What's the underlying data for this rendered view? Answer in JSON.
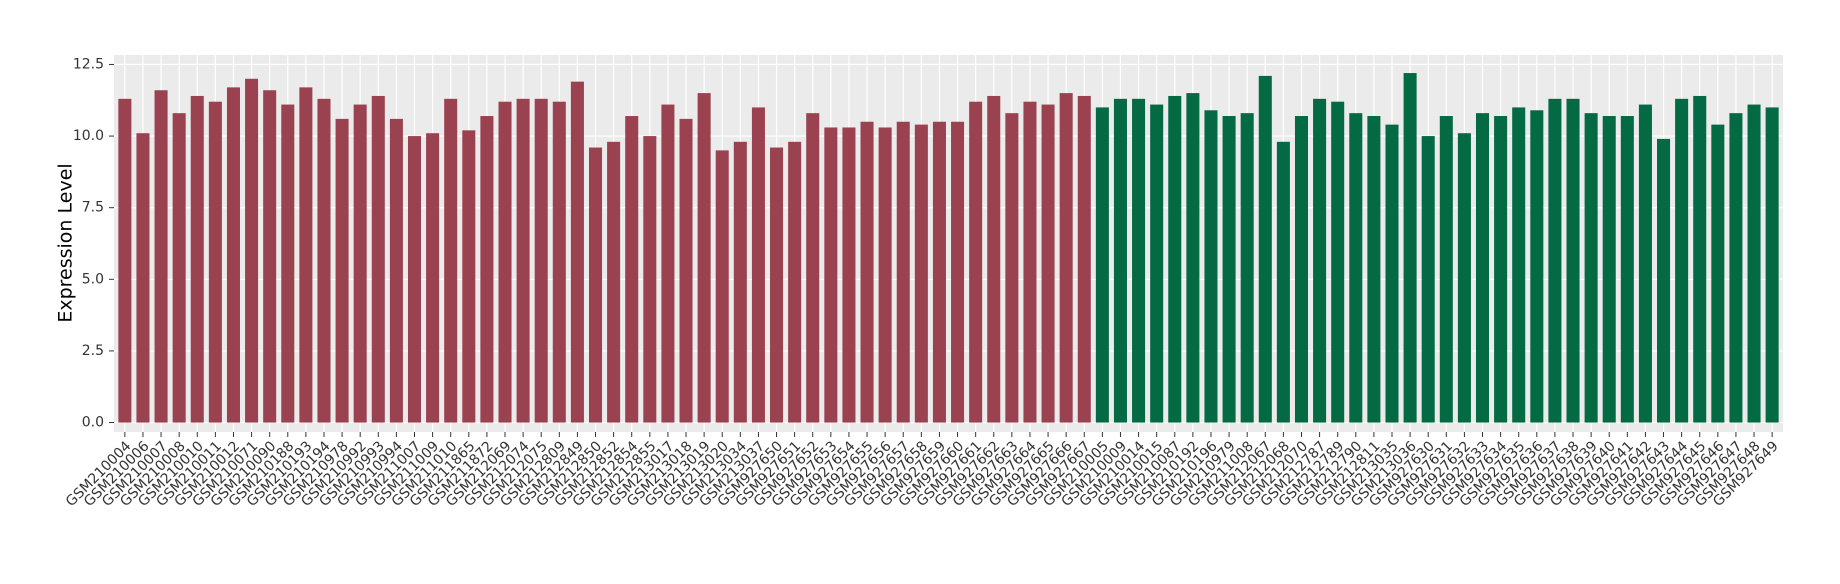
{
  "chart_data": {
    "type": "bar",
    "y_label": "Expression Level",
    "categories": [
      "GSM210004",
      "GSM210006",
      "GSM210007",
      "GSM210008",
      "GSM210010",
      "GSM210011",
      "GSM210012",
      "GSM210071",
      "GSM210090",
      "GSM210188",
      "GSM210193",
      "GSM210194",
      "GSM210978",
      "GSM210992",
      "GSM210993",
      "GSM210994",
      "GSM211007",
      "GSM211009",
      "GSM211010",
      "GSM211865",
      "GSM211872",
      "GSM212069",
      "GSM212074",
      "GSM212075",
      "GSM212809",
      "GSM212849",
      "GSM212850",
      "GSM212852",
      "GSM212854",
      "GSM212855",
      "GSM213017",
      "GSM213018",
      "GSM213019",
      "GSM213020",
      "GSM213034",
      "GSM213037",
      "GSM927650",
      "GSM927651",
      "GSM927652",
      "GSM927653",
      "GSM927654",
      "GSM927655",
      "GSM927656",
      "GSM927657",
      "GSM927658",
      "GSM927659",
      "GSM927660",
      "GSM927661",
      "GSM927662",
      "GSM927663",
      "GSM927664",
      "GSM927665",
      "GSM927666",
      "GSM927667",
      "GSM210005",
      "GSM210009",
      "GSM210014",
      "GSM210015",
      "GSM210087",
      "GSM210192",
      "GSM210196",
      "GSM210979",
      "GSM211008",
      "GSM212067",
      "GSM212068",
      "GSM212070",
      "GSM212787",
      "GSM212789",
      "GSM212790",
      "GSM212811",
      "GSM213035",
      "GSM213036",
      "GSM927630",
      "GSM927631",
      "GSM927632",
      "GSM927633",
      "GSM927634",
      "GSM927635",
      "GSM927636",
      "GSM927637",
      "GSM927638",
      "GSM927639",
      "GSM927640",
      "GSM927641",
      "GSM927642",
      "GSM927643",
      "GSM927644",
      "GSM927645",
      "GSM927646",
      "GSM927647",
      "GSM927648",
      "GSM927649"
    ],
    "values": [
      11.3,
      10.1,
      11.6,
      10.8,
      11.4,
      11.2,
      11.7,
      12.0,
      11.6,
      11.1,
      11.7,
      11.3,
      10.6,
      11.1,
      11.4,
      10.6,
      10.0,
      10.1,
      11.3,
      10.2,
      10.7,
      11.2,
      11.3,
      11.3,
      11.2,
      11.9,
      9.6,
      9.8,
      10.7,
      10.0,
      11.1,
      10.6,
      11.5,
      9.5,
      9.8,
      11.0,
      9.6,
      9.8,
      10.8,
      10.3,
      10.3,
      10.5,
      10.3,
      10.5,
      10.4,
      10.5,
      10.5,
      11.2,
      11.4,
      10.8,
      11.2,
      11.1,
      11.5,
      11.4,
      11.0,
      11.3,
      11.3,
      11.1,
      11.4,
      11.5,
      10.9,
      10.7,
      10.8,
      12.1,
      9.8,
      10.7,
      11.3,
      11.2,
      10.8,
      10.7,
      10.4,
      12.2,
      10.0,
      10.7,
      10.1,
      10.8,
      10.7,
      11.0,
      10.9,
      11.3,
      11.3,
      10.8,
      10.7,
      10.7,
      11.1,
      9.9,
      11.3,
      11.4,
      10.4,
      10.8,
      11.1,
      11.0
    ],
    "colors": [
      "#9b4250",
      "#9b4250",
      "#9b4250",
      "#9b4250",
      "#9b4250",
      "#9b4250",
      "#9b4250",
      "#9b4250",
      "#9b4250",
      "#9b4250",
      "#9b4250",
      "#9b4250",
      "#9b4250",
      "#9b4250",
      "#9b4250",
      "#9b4250",
      "#9b4250",
      "#9b4250",
      "#9b4250",
      "#9b4250",
      "#9b4250",
      "#9b4250",
      "#9b4250",
      "#9b4250",
      "#9b4250",
      "#9b4250",
      "#9b4250",
      "#9b4250",
      "#9b4250",
      "#9b4250",
      "#9b4250",
      "#9b4250",
      "#9b4250",
      "#9b4250",
      "#9b4250",
      "#9b4250",
      "#9b4250",
      "#9b4250",
      "#9b4250",
      "#9b4250",
      "#9b4250",
      "#9b4250",
      "#9b4250",
      "#9b4250",
      "#9b4250",
      "#9b4250",
      "#9b4250",
      "#9b4250",
      "#9b4250",
      "#9b4250",
      "#9b4250",
      "#9b4250",
      "#9b4250",
      "#9b4250",
      "#046a44",
      "#046a44",
      "#046a44",
      "#046a44",
      "#046a44",
      "#046a44",
      "#046a44",
      "#046a44",
      "#046a44",
      "#046a44",
      "#046a44",
      "#046a44",
      "#046a44",
      "#046a44",
      "#046a44",
      "#046a44",
      "#046a44",
      "#046a44",
      "#046a44",
      "#046a44",
      "#046a44",
      "#046a44",
      "#046a44",
      "#046a44",
      "#046a44",
      "#046a44",
      "#046a44",
      "#046a44",
      "#046a44",
      "#046a44",
      "#046a44",
      "#046a44",
      "#046a44",
      "#046a44",
      "#046a44",
      "#046a44",
      "#046a44",
      "#046a44"
    ],
    "ylim": [
      -0.33,
      12.83
    ],
    "yticks": [
      {
        "value": 0,
        "label": "0.0"
      },
      {
        "value": 2.5,
        "label": "2.5"
      },
      {
        "value": 5,
        "label": "5.0"
      },
      {
        "value": 7.5,
        "label": "7.5"
      },
      {
        "value": 10,
        "label": "10.0"
      },
      {
        "value": 12.5,
        "label": "12.5"
      }
    ],
    "grid": true
  }
}
